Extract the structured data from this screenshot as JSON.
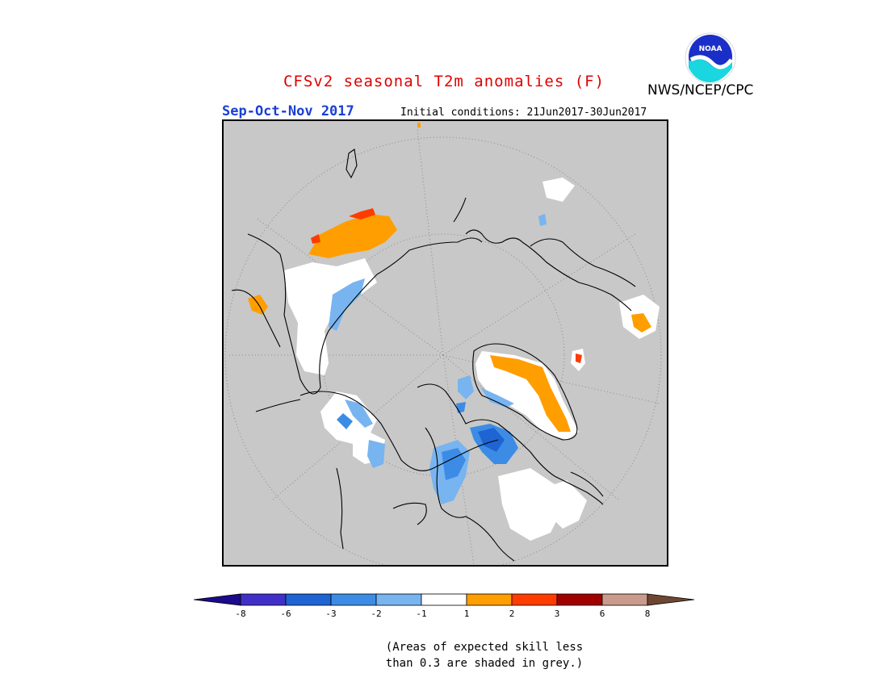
{
  "header": {
    "title": "CFSv2 seasonal T2m anomalies (F)",
    "agency": "NWS/NCEP/CPC",
    "season": "Sep-Oct-Nov 2017",
    "initial_conditions": "Initial conditions: 21Jun2017-30Jun2017",
    "logo_text": "NOAA"
  },
  "legend": {
    "ticks": [
      "-8",
      "-6",
      "-3",
      "-2",
      "-1",
      "1",
      "2",
      "3",
      "6",
      "8"
    ],
    "colors": [
      "#1c0a8c",
      "#4030c8",
      "#1e64d2",
      "#3c8ce6",
      "#78b4f0",
      "#ffffff",
      "#ff9e00",
      "#ff3c00",
      "#a00000",
      "#c89b8c",
      "#6e4632"
    ]
  },
  "note": {
    "line1": "(Areas of expected skill less",
    "line2": "than 0.3 are shaded in grey.)"
  },
  "colors": {
    "no_skill": "#c8c8c8",
    "title": "#e00000",
    "season": "#1a3fd4"
  }
}
